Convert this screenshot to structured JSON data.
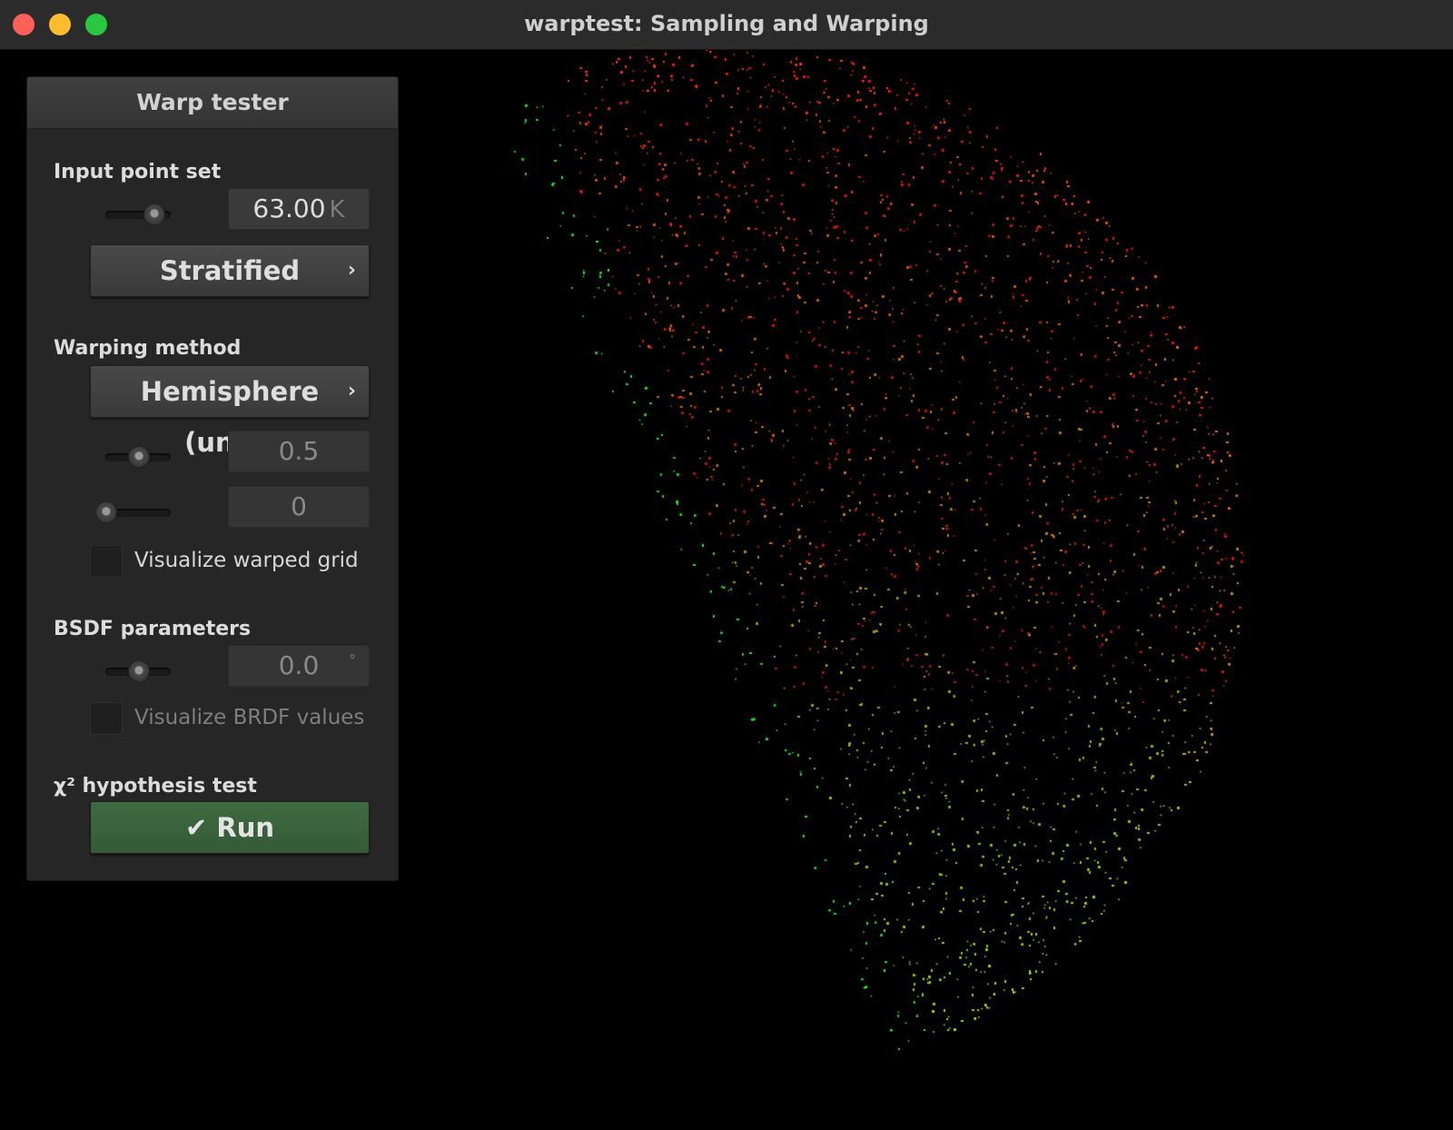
{
  "window": {
    "title": "warptest: Sampling and Warping"
  },
  "panel": {
    "title": "Warp tester",
    "input_point_set": {
      "label": "Input point set",
      "count_value": "63.00",
      "count_unit": "K",
      "slider_fraction": 0.75,
      "method": "Stratified"
    },
    "warping_method": {
      "label": "Warping method",
      "method": "Hemisphere (unif.)",
      "param1_value": "0.5",
      "param1_fraction": 0.5,
      "param2_value": "0",
      "param2_fraction": 0.0,
      "visualize_grid_label": "Visualize warped grid"
    },
    "bsdf_parameters": {
      "label": "BSDF parameters",
      "angle_value": "0.0",
      "angle_unit": "°",
      "slider_fraction": 0.5,
      "visualize_brdf_label": "Visualize BRDF values"
    },
    "hypothesis_test": {
      "label": "χ² hypothesis test",
      "run_label": "Run",
      "run_icon": "checkmark-icon"
    }
  },
  "colors": {
    "run_button": "#3f6a40",
    "points_red": "#ff2010",
    "points_green": "#20e020"
  }
}
